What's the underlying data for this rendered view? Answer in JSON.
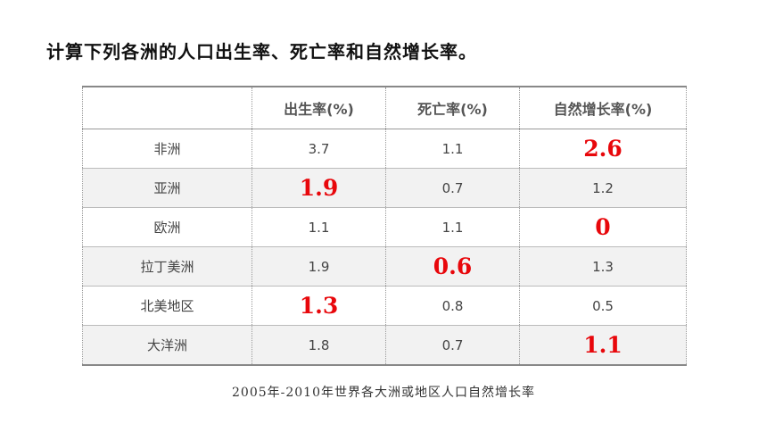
{
  "title": "计算下列各洲的人口出生率、死亡率和自然增长率。",
  "table": {
    "headers": [
      "",
      "出生率(%)",
      "死亡率(%)",
      "自然增长率(%)"
    ],
    "rows": [
      {
        "region": "非洲",
        "birth": "3.7",
        "death": "1.1",
        "growth": "2.6"
      },
      {
        "region": "亚洲",
        "birth": "1.9",
        "death": "0.7",
        "growth": "1.2"
      },
      {
        "region": "欧洲",
        "birth": "1.1",
        "death": "1.1",
        "growth": "0"
      },
      {
        "region": "拉丁美洲",
        "birth": "1.9",
        "death": "0.6",
        "growth": "1.3"
      },
      {
        "region": "北美地区",
        "birth": "1.3",
        "death": "0.8",
        "growth": "0.5"
      },
      {
        "region": "大洋洲",
        "birth": "1.8",
        "death": "0.7",
        "growth": "1.1"
      }
    ],
    "answer_color": "#e8070b"
  },
  "caption": "2005年-2010年世界各大洲或地区人口自然增长率"
}
